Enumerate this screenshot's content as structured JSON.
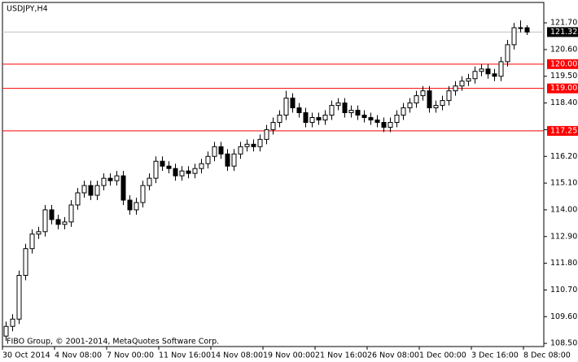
{
  "chart_data": {
    "type": "candlestick",
    "title": "USDJPY,H4",
    "watermark": "FIBO Group, © 2001-2014, MetaQuotes Software Corp.",
    "categories": [
      "30 Oct 2014",
      null,
      null,
      null,
      null,
      null,
      null,
      null,
      "4 Nov 08:00",
      null,
      null,
      null,
      null,
      null,
      null,
      null,
      "7 Nov 00:00",
      null,
      null,
      null,
      null,
      null,
      null,
      null,
      "11 Nov 16:00",
      null,
      null,
      null,
      null,
      null,
      null,
      null,
      "14 Nov 08:00",
      null,
      null,
      null,
      null,
      null,
      null,
      null,
      "19 Nov 00:00",
      null,
      null,
      null,
      null,
      null,
      null,
      null,
      "21 Nov 16:00",
      null,
      null,
      null,
      null,
      null,
      null,
      null,
      "26 Nov 08:00",
      null,
      null,
      null,
      null,
      null,
      null,
      null,
      "1 Dec 00:00",
      null,
      null,
      null,
      null,
      null,
      null,
      null,
      "3 Dec 16:00",
      null,
      null,
      null,
      null,
      null,
      null,
      null,
      "8 Dec 08:00"
    ],
    "open": [
      108.8,
      109.2,
      109.5,
      111.3,
      112.4,
      113.0,
      113.1,
      114.0,
      113.6,
      113.4,
      113.5,
      114.2,
      114.7,
      115.0,
      114.6,
      115.0,
      115.3,
      115.2,
      115.4,
      114.4,
      114.0,
      114.3,
      115.0,
      115.3,
      116.0,
      115.8,
      115.7,
      115.4,
      115.6,
      115.5,
      115.7,
      115.9,
      116.2,
      116.6,
      116.3,
      115.8,
      116.3,
      116.6,
      116.7,
      116.6,
      116.9,
      117.3,
      117.6,
      117.9,
      118.6,
      118.2,
      118.0,
      117.6,
      117.8,
      117.7,
      117.9,
      118.3,
      118.4,
      118.0,
      118.1,
      117.9,
      117.8,
      117.7,
      117.6,
      117.4,
      117.6,
      117.9,
      118.2,
      118.4,
      118.7,
      118.9,
      118.2,
      118.3,
      118.5,
      118.9,
      119.1,
      119.3,
      119.4,
      119.7,
      119.8,
      119.6,
      119.5,
      120.1,
      120.8,
      121.5,
      121.5
    ],
    "high": [
      109.4,
      109.7,
      111.5,
      112.6,
      113.2,
      113.3,
      114.2,
      114.2,
      113.8,
      113.7,
      114.4,
      114.9,
      115.2,
      115.2,
      115.2,
      115.5,
      115.5,
      115.6,
      115.6,
      114.6,
      114.5,
      115.2,
      115.5,
      116.2,
      116.2,
      116.0,
      115.9,
      115.8,
      115.8,
      115.9,
      116.1,
      116.4,
      116.8,
      116.8,
      116.5,
      116.5,
      116.8,
      116.9,
      116.9,
      117.1,
      117.5,
      117.8,
      118.1,
      118.9,
      118.8,
      118.4,
      118.2,
      118.0,
      118.0,
      118.1,
      118.5,
      118.6,
      118.6,
      118.3,
      118.3,
      118.1,
      118.0,
      117.9,
      117.8,
      117.8,
      118.1,
      118.4,
      118.6,
      118.9,
      119.1,
      119.1,
      118.5,
      118.7,
      119.1,
      119.3,
      119.5,
      119.6,
      119.9,
      120.0,
      120.0,
      119.8,
      120.3,
      121.0,
      121.7,
      121.8,
      121.6
    ],
    "low": [
      108.6,
      109.0,
      109.3,
      111.1,
      112.2,
      112.8,
      112.9,
      113.4,
      113.2,
      113.2,
      113.3,
      114.0,
      114.5,
      114.4,
      114.4,
      114.8,
      115.0,
      115.0,
      114.2,
      113.8,
      113.8,
      114.1,
      114.8,
      115.1,
      115.6,
      115.5,
      115.2,
      115.2,
      115.3,
      115.3,
      115.5,
      115.7,
      116.0,
      116.1,
      115.6,
      115.6,
      116.1,
      116.4,
      116.4,
      116.4,
      116.7,
      117.1,
      117.4,
      117.7,
      118.0,
      117.8,
      117.4,
      117.4,
      117.5,
      117.5,
      117.7,
      118.1,
      117.8,
      117.8,
      117.7,
      117.6,
      117.5,
      117.4,
      117.2,
      117.2,
      117.4,
      117.7,
      118.0,
      118.2,
      118.5,
      118.0,
      118.0,
      118.1,
      118.3,
      118.7,
      118.9,
      119.1,
      119.2,
      119.5,
      119.4,
      119.3,
      119.3,
      119.9,
      120.6,
      121.3,
      121.2
    ],
    "close": [
      109.2,
      109.5,
      111.3,
      112.4,
      113.0,
      113.1,
      114.0,
      113.6,
      113.4,
      113.5,
      114.2,
      114.7,
      115.0,
      114.6,
      115.0,
      115.3,
      115.2,
      115.4,
      114.4,
      114.0,
      114.3,
      115.0,
      115.3,
      116.0,
      115.8,
      115.7,
      115.4,
      115.6,
      115.5,
      115.7,
      115.9,
      116.2,
      116.6,
      116.3,
      115.8,
      116.3,
      116.6,
      116.7,
      116.6,
      116.9,
      117.3,
      117.6,
      117.9,
      118.6,
      118.2,
      118.0,
      117.6,
      117.8,
      117.7,
      117.9,
      118.3,
      118.4,
      118.0,
      118.1,
      117.9,
      117.8,
      117.7,
      117.6,
      117.4,
      117.6,
      117.9,
      118.2,
      118.4,
      118.7,
      118.9,
      118.2,
      118.3,
      118.5,
      118.9,
      119.1,
      119.3,
      119.4,
      119.7,
      119.8,
      119.6,
      119.5,
      120.1,
      120.8,
      121.5,
      121.5,
      121.32
    ],
    "ylim": [
      108.37,
      122.54
    ],
    "yticks": [
      {
        "value": 121.7,
        "label": "121.70"
      },
      {
        "value": 120.6,
        "label": "120.60"
      },
      {
        "value": 119.5,
        "label": "119.50"
      },
      {
        "value": 118.4,
        "label": "118.40"
      },
      {
        "value": 117.3,
        "label": "117.30"
      },
      {
        "value": 116.2,
        "label": "116.20"
      },
      {
        "value": 115.1,
        "label": "115.10"
      },
      {
        "value": 114,
        "label": "114.00"
      },
      {
        "value": 112.9,
        "label": "112.90"
      },
      {
        "value": 111.8,
        "label": "111.80"
      },
      {
        "value": 110.7,
        "label": "110.70"
      },
      {
        "value": 109.6,
        "label": "109.60"
      },
      {
        "value": 108.5,
        "label": "108.50"
      }
    ],
    "hlines": [
      {
        "value": 121.32,
        "label": "121.32",
        "color": "#c0c0c0"
      },
      {
        "value": 120,
        "label": "120.00",
        "color": "#ff0000"
      },
      {
        "value": 119,
        "label": "119.00",
        "color": "#ff0000"
      },
      {
        "value": 117.25,
        "label": "117.25",
        "color": "#ff0000"
      }
    ],
    "bull_color": "#ffffff",
    "bear_color": "#000000"
  }
}
